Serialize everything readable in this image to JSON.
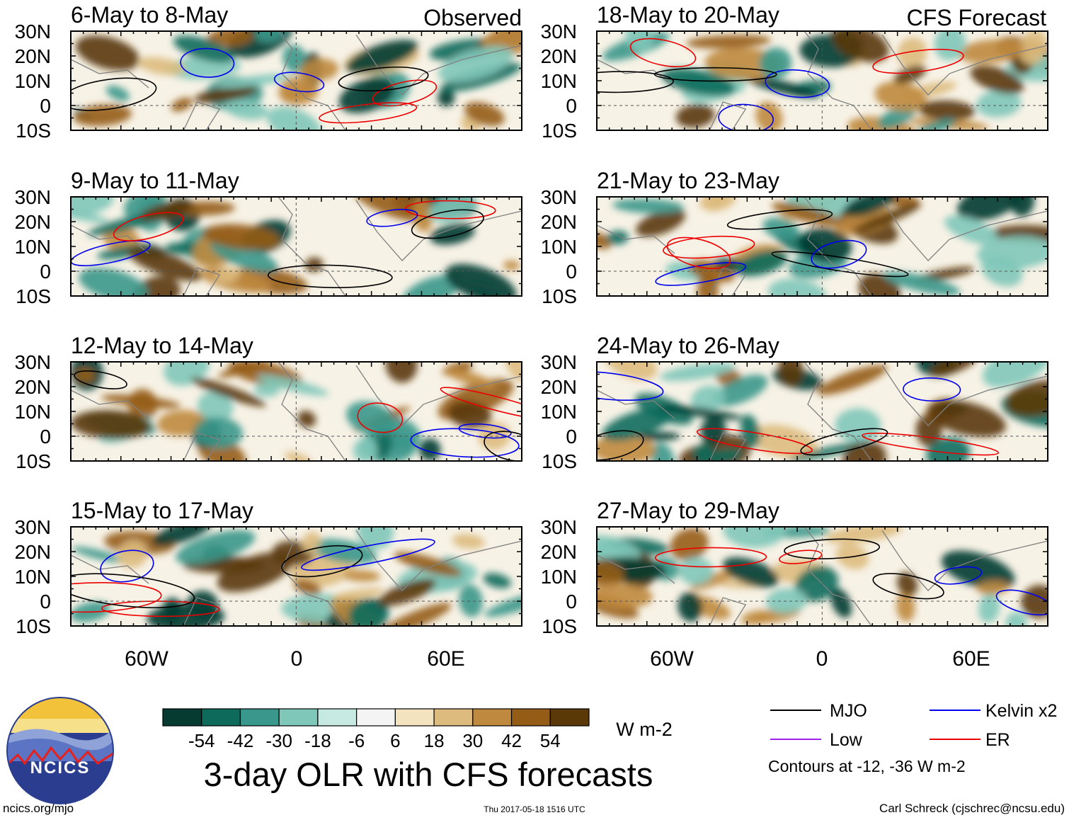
{
  "figure": {
    "title": "3-day OLR with CFS forecasts",
    "observed_label": "Observed",
    "forecast_label": "CFS Forecast",
    "footer_left": "ncics.org/mjo",
    "footer_center": "Thu 2017-05-18 1516 UTC",
    "footer_right": "Carl Schreck (cjschrec@ncsu.edu)",
    "logo_text": "NCICS"
  },
  "axes": {
    "lat_labels": [
      "30N",
      "20N",
      "10N",
      "0",
      "10S"
    ],
    "lon_labels": [
      "60W",
      "0",
      "60E"
    ],
    "lat_range": [
      -10,
      30
    ],
    "lon_range": [
      -90,
      90
    ]
  },
  "panels": {
    "observed": [
      {
        "title": "6-May to 8-May"
      },
      {
        "title": "9-May to 11-May"
      },
      {
        "title": "12-May to 14-May"
      },
      {
        "title": "15-May to 17-May"
      }
    ],
    "forecast": [
      {
        "title": "18-May to 20-May"
      },
      {
        "title": "21-May to 23-May"
      },
      {
        "title": "24-May to 26-May"
      },
      {
        "title": "27-May to 29-May"
      }
    ]
  },
  "colorbar": {
    "units": "W m-2",
    "ticks": [
      "-54",
      "-42",
      "-30",
      "-18",
      "-6",
      "6",
      "18",
      "30",
      "42",
      "54"
    ],
    "colors": [
      "#053b31",
      "#0e6b5c",
      "#3a978b",
      "#7fc7b9",
      "#c6e9e1",
      "#f4f4f4",
      "#f3e3bf",
      "#ddbb7e",
      "#bf8a3f",
      "#955c17",
      "#5a3808"
    ]
  },
  "legend": {
    "items": [
      {
        "label": "MJO",
        "color": "#000000"
      },
      {
        "label": "Kelvin x2",
        "color": "#0000ee"
      },
      {
        "label": "Low",
        "color": "#a020f0"
      },
      {
        "label": "ER",
        "color": "#ee0000"
      }
    ],
    "note": "Contours at -12, -36 W m-2"
  },
  "colors": {
    "coast": "#808080",
    "zero_line": "#555555",
    "ridge": "#e8201c",
    "sky_top": "#f2c23b",
    "logo_band": "#2a3d8f"
  }
}
